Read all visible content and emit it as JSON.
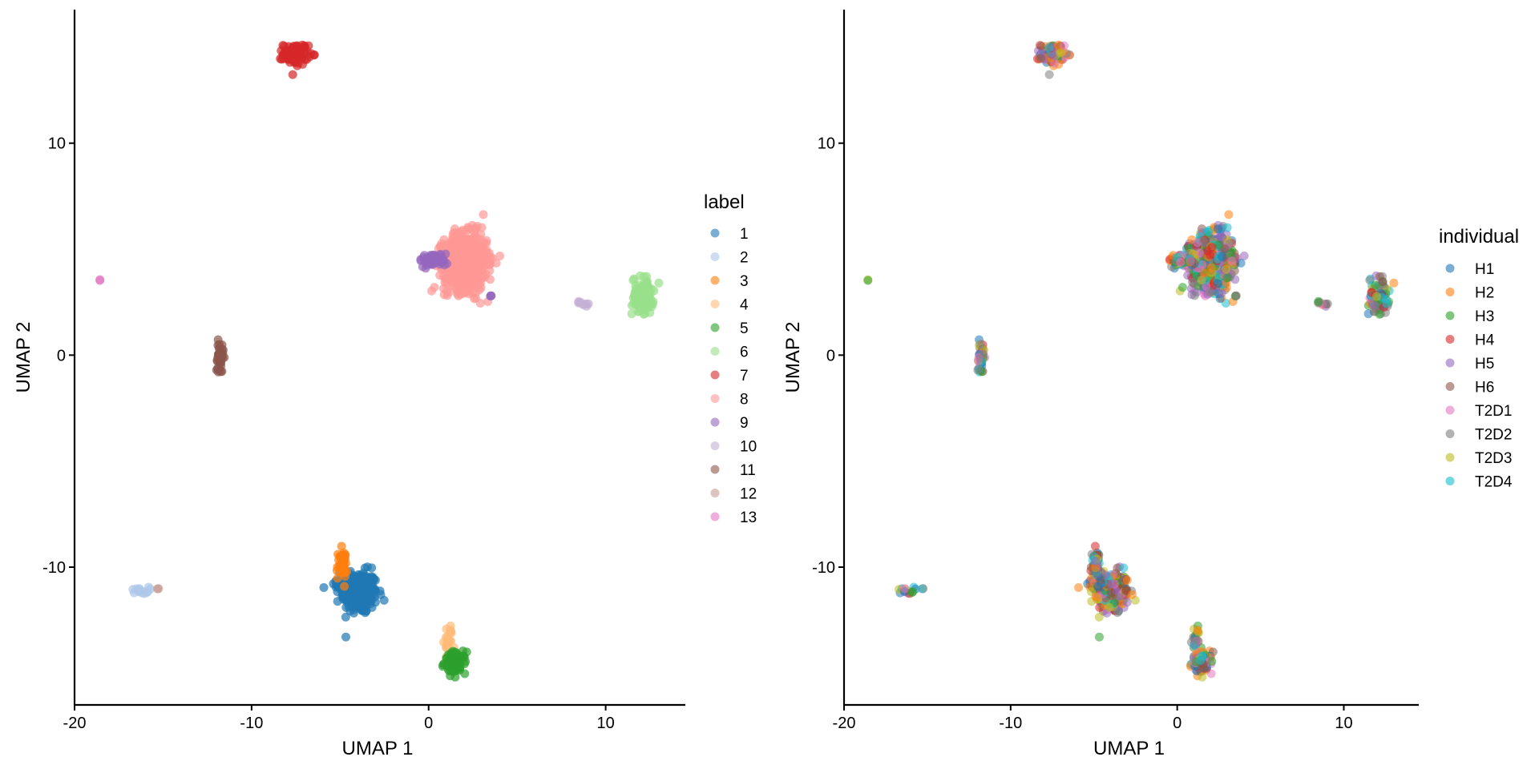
{
  "chart_data": [
    {
      "type": "scatter",
      "xlabel": "UMAP 1",
      "ylabel": "UMAP 2",
      "xlim": [
        -20,
        14.5
      ],
      "ylim": [
        -16.5,
        16.3
      ],
      "x_ticks": [
        -20,
        -10,
        0,
        10
      ],
      "y_ticks": [
        -10,
        0,
        10
      ],
      "x_tick_labels": [
        "-20",
        "-10",
        "0",
        "10"
      ],
      "y_tick_labels": [
        "-10",
        "0",
        "10"
      ],
      "legend_title": "label",
      "legend_position": "right",
      "grid": false,
      "series": [
        {
          "name": "1",
          "color": "#1f77b4",
          "clusters": [
            {
              "x": -3.9,
              "y": -11.2,
              "sx": 0.5,
              "sy": 0.5,
              "n": 260
            },
            {
              "x": -4.5,
              "y": -10.8,
              "sx": 0.35,
              "sy": 0.3,
              "n": 80
            }
          ]
        },
        {
          "name": "2",
          "color": "#aec7e8",
          "clusters": [
            {
              "x": -16.3,
              "y": -11.1,
              "sx": 0.25,
              "sy": 0.08,
              "n": 14
            }
          ]
        },
        {
          "name": "3",
          "color": "#ff7f0e",
          "clusters": [
            {
              "x": -4.9,
              "y": -9.9,
              "sx": 0.15,
              "sy": 0.35,
              "n": 50
            }
          ]
        },
        {
          "name": "4",
          "color": "#ffbb78",
          "clusters": [
            {
              "x": 1.1,
              "y": -13.4,
              "sx": 0.12,
              "sy": 0.35,
              "n": 22
            }
          ]
        },
        {
          "name": "5",
          "color": "#2ca02c",
          "clusters": [
            {
              "x": 1.5,
              "y": -14.5,
              "sx": 0.3,
              "sy": 0.25,
              "n": 90
            }
          ]
        },
        {
          "name": "6",
          "color": "#98df8a",
          "clusters": [
            {
              "x": 12.1,
              "y": 2.8,
              "sx": 0.3,
              "sy": 0.45,
              "n": 80
            }
          ]
        },
        {
          "name": "7",
          "color": "#d62728",
          "clusters": [
            {
              "x": -7.5,
              "y": 14.2,
              "sx": 0.35,
              "sy": 0.25,
              "n": 80
            }
          ]
        },
        {
          "name": "8",
          "color": "#ff9896",
          "clusters": [
            {
              "x": 2.1,
              "y": 4.4,
              "sx": 0.6,
              "sy": 0.65,
              "n": 900
            }
          ]
        },
        {
          "name": "9",
          "color": "#9467bd",
          "clusters": [
            {
              "x": 0.3,
              "y": 4.5,
              "sx": 0.4,
              "sy": 0.15,
              "n": 60
            },
            {
              "x": 3.5,
              "y": 2.8,
              "sx": 0.05,
              "sy": 0.05,
              "n": 3
            }
          ]
        },
        {
          "name": "10",
          "color": "#c5b0d5",
          "clusters": [
            {
              "x": 8.8,
              "y": 2.45,
              "sx": 0.2,
              "sy": 0.06,
              "n": 10
            }
          ]
        },
        {
          "name": "11",
          "color": "#8c564b",
          "clusters": [
            {
              "x": -11.8,
              "y": -0.1,
              "sx": 0.1,
              "sy": 0.35,
              "n": 40
            }
          ]
        },
        {
          "name": "12",
          "color": "#c49c94",
          "clusters": [
            {
              "x": -15.3,
              "y": -11.0,
              "sx": 0.02,
              "sy": 0.02,
              "n": 2
            }
          ]
        },
        {
          "name": "13",
          "color": "#e377c2",
          "clusters": [
            {
              "x": -18.6,
              "y": 3.55,
              "sx": 0.02,
              "sy": 0.02,
              "n": 2
            }
          ]
        }
      ]
    },
    {
      "type": "scatter",
      "xlabel": "UMAP 1",
      "ylabel": "UMAP 2",
      "xlim": [
        -20,
        14.5
      ],
      "ylim": [
        -16.5,
        16.3
      ],
      "x_ticks": [
        -20,
        -10,
        0,
        10
      ],
      "y_ticks": [
        -10,
        0,
        10
      ],
      "x_tick_labels": [
        "-20",
        "-10",
        "0",
        "10"
      ],
      "y_tick_labels": [
        "-10",
        "0",
        "10"
      ],
      "legend_title": "individual",
      "legend_position": "right",
      "grid": false,
      "series": [
        {
          "name": "H1",
          "color": "#1f77b4"
        },
        {
          "name": "H2",
          "color": "#ff7f0e"
        },
        {
          "name": "H3",
          "color": "#2ca02c"
        },
        {
          "name": "H4",
          "color": "#d62728"
        },
        {
          "name": "H5",
          "color": "#9467bd"
        },
        {
          "name": "H6",
          "color": "#8c564b"
        },
        {
          "name": "T2D1",
          "color": "#e377c2"
        },
        {
          "name": "T2D2",
          "color": "#7f7f7f"
        },
        {
          "name": "T2D3",
          "color": "#bcbd22"
        },
        {
          "name": "T2D4",
          "color": "#17becf"
        }
      ]
    }
  ]
}
